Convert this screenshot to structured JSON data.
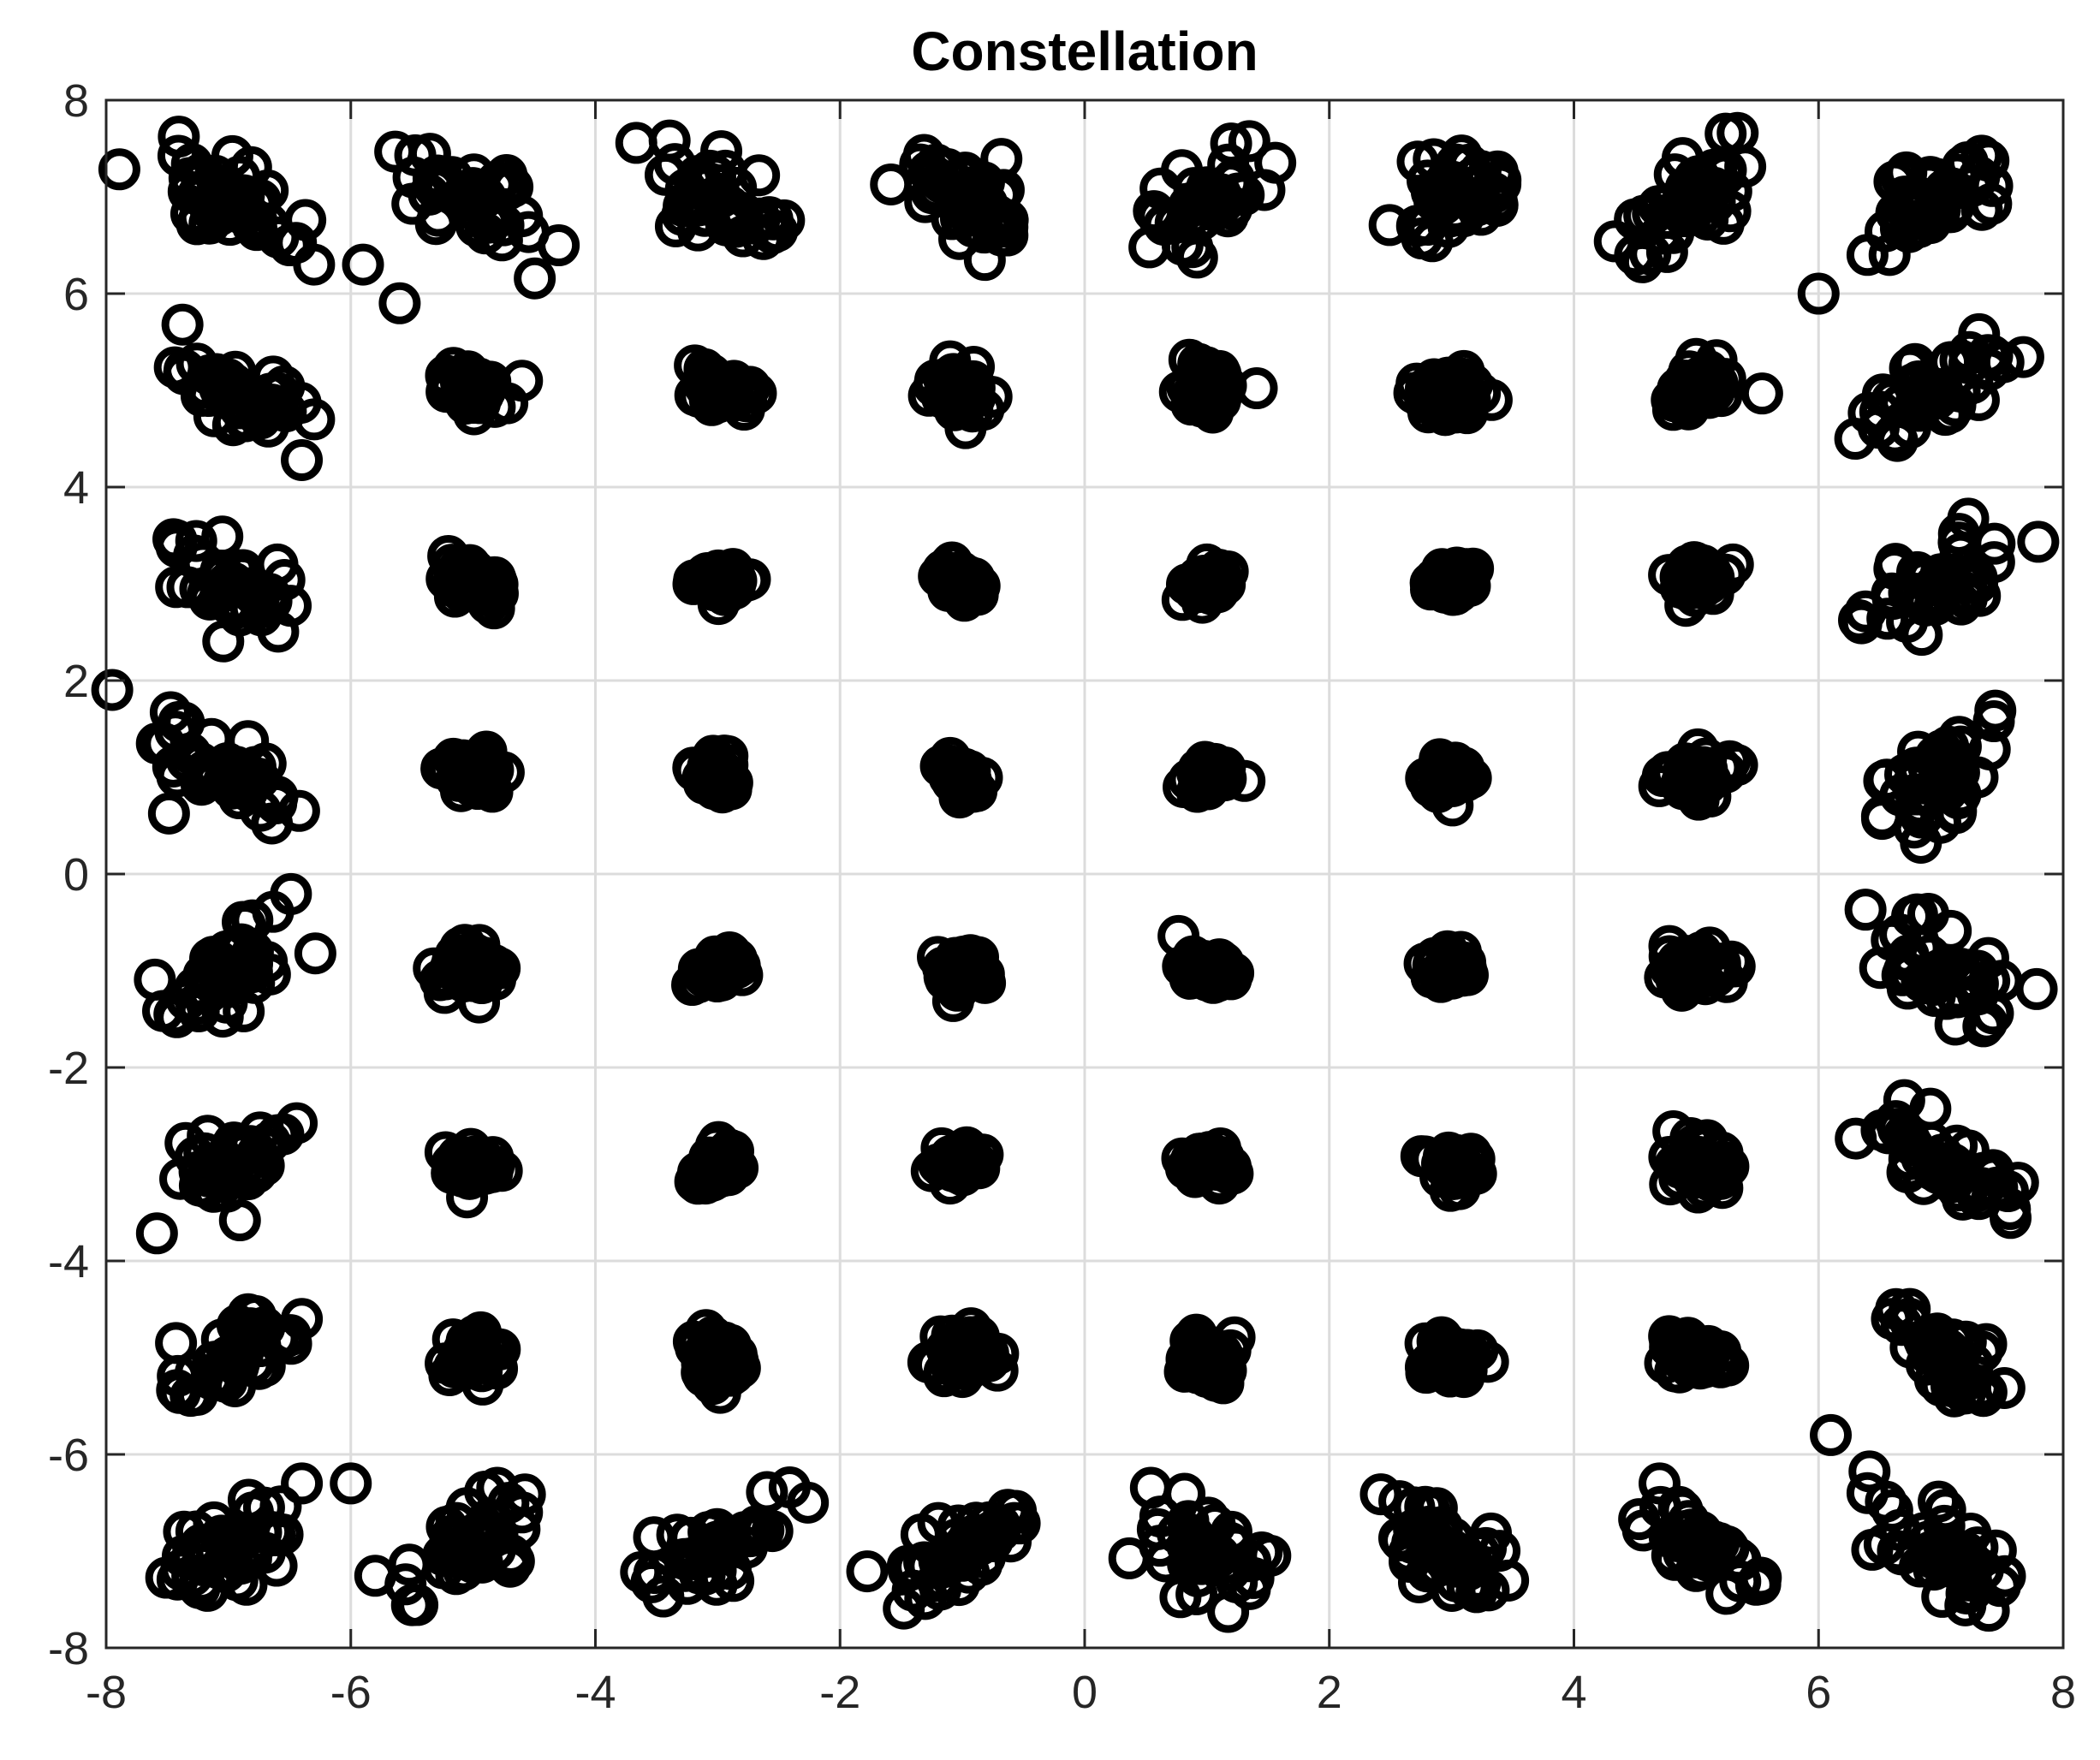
{
  "chart_data": {
    "type": "scatter",
    "title": "Constellation",
    "xlabel": "",
    "ylabel": "",
    "xlim": [
      -8,
      8
    ],
    "ylim": [
      -8,
      8
    ],
    "xticks": [
      -8,
      -6,
      -4,
      -2,
      0,
      2,
      4,
      6,
      8
    ],
    "yticks": [
      -8,
      -6,
      -4,
      -2,
      0,
      2,
      4,
      6,
      8
    ],
    "grid": true,
    "legend": "none",
    "marker": "open-circle",
    "marker_color": "#000000",
    "constellation_order": 64,
    "constellation_levels": [
      -7,
      -5,
      -3,
      -1,
      1,
      3,
      5,
      7
    ],
    "series": [
      {
        "values": [
          [
            -6.8,
            6.7
          ],
          [
            -6.5,
            6.5
          ],
          [
            -6.3,
            6.3
          ],
          [
            -5.9,
            6.3
          ],
          [
            -5.6,
            5.9
          ],
          [
            -4.9,
            7.0
          ],
          [
            -4.6,
            6.8
          ],
          [
            -4.3,
            6.5
          ],
          [
            -3.1,
            7.1
          ],
          [
            -2.9,
            6.9
          ],
          [
            -1.0,
            7.2
          ],
          [
            -0.8,
            6.9
          ],
          [
            1.0,
            7.1
          ],
          [
            1.2,
            6.9
          ],
          [
            3.0,
            7.1
          ],
          [
            3.1,
            6.8
          ],
          [
            4.5,
            6.4
          ],
          [
            4.9,
            6.8
          ],
          [
            6.0,
            6.0
          ],
          [
            6.4,
            6.4
          ],
          [
            -7.0,
            5.0
          ],
          [
            -6.6,
            4.8
          ],
          [
            -6.3,
            4.7
          ],
          [
            -5.2,
            5.1
          ],
          [
            -4.9,
            5.0
          ],
          [
            -4.6,
            5.1
          ],
          [
            -3.1,
            5.2
          ],
          [
            -1.1,
            5.3
          ],
          [
            1.1,
            5.2
          ],
          [
            3.1,
            5.2
          ],
          [
            4.8,
            4.9
          ],
          [
            5.1,
            5.2
          ],
          [
            6.3,
            4.5
          ],
          [
            6.6,
            4.9
          ],
          [
            7.0,
            5.0
          ],
          [
            -7.0,
            3.0
          ],
          [
            -6.8,
            2.9
          ],
          [
            -6.6,
            3.2
          ],
          [
            -5.1,
            3.1
          ],
          [
            -3.1,
            3.1
          ],
          [
            -1.1,
            3.2
          ],
          [
            1.0,
            3.2
          ],
          [
            3.1,
            3.1
          ],
          [
            5.1,
            3.0
          ],
          [
            5.3,
            3.2
          ],
          [
            6.6,
            2.9
          ],
          [
            7.0,
            3.1
          ],
          [
            7.2,
            3.0
          ],
          [
            -7.2,
            1.0
          ],
          [
            -6.9,
            0.9
          ],
          [
            -6.6,
            0.8
          ],
          [
            -5.2,
            1.1
          ],
          [
            -3.2,
            1.1
          ],
          [
            -1.1,
            1.2
          ],
          [
            1.0,
            1.0
          ],
          [
            3.1,
            1.1
          ],
          [
            5.2,
            1.1
          ],
          [
            6.8,
            1.1
          ],
          [
            7.1,
            1.0
          ],
          [
            7.3,
            1.0
          ],
          [
            -7.1,
            -1.0
          ],
          [
            -6.8,
            -0.8
          ],
          [
            -5.1,
            -1.0
          ],
          [
            -3.1,
            -1.0
          ],
          [
            -1.1,
            -1.1
          ],
          [
            1.0,
            -1.1
          ],
          [
            3.1,
            -1.0
          ],
          [
            5.2,
            -1.0
          ],
          [
            6.7,
            -1.0
          ],
          [
            7.0,
            -1.0
          ],
          [
            7.3,
            -1.0
          ],
          [
            -7.0,
            -3.0
          ],
          [
            -6.6,
            -2.7
          ],
          [
            -6.8,
            -3.1
          ],
          [
            -5.1,
            -3.1
          ],
          [
            -3.1,
            -3.2
          ],
          [
            -1.1,
            -3.2
          ],
          [
            1.1,
            -3.2
          ],
          [
            3.2,
            -3.1
          ],
          [
            5.2,
            -3.1
          ],
          [
            6.7,
            -2.7
          ],
          [
            7.1,
            -3.0
          ],
          [
            -7.0,
            -5.0
          ],
          [
            -6.6,
            -4.8
          ],
          [
            -6.4,
            -4.6
          ],
          [
            -5.0,
            -5.0
          ],
          [
            -3.1,
            -5.1
          ],
          [
            -1.0,
            -5.2
          ],
          [
            1.0,
            -5.2
          ],
          [
            3.1,
            -5.2
          ],
          [
            4.8,
            -4.8
          ],
          [
            5.2,
            -5.1
          ],
          [
            6.6,
            -4.6
          ],
          [
            7.0,
            -4.9
          ],
          [
            -6.8,
            -6.6
          ],
          [
            -6.4,
            -6.3
          ],
          [
            -6.0,
            -6.3
          ],
          [
            -4.9,
            -6.8
          ],
          [
            -4.6,
            -6.6
          ],
          [
            -3.0,
            -6.9
          ],
          [
            -1.0,
            -7.1
          ],
          [
            1.0,
            -7.1
          ],
          [
            1.2,
            -6.8
          ],
          [
            2.8,
            -6.8
          ],
          [
            3.1,
            -7.1
          ],
          [
            4.7,
            -6.3
          ],
          [
            4.9,
            -6.8
          ],
          [
            5.1,
            -7.1
          ],
          [
            6.1,
            -5.8
          ],
          [
            6.4,
            -6.4
          ],
          [
            6.9,
            -6.9
          ]
        ]
      }
    ]
  }
}
